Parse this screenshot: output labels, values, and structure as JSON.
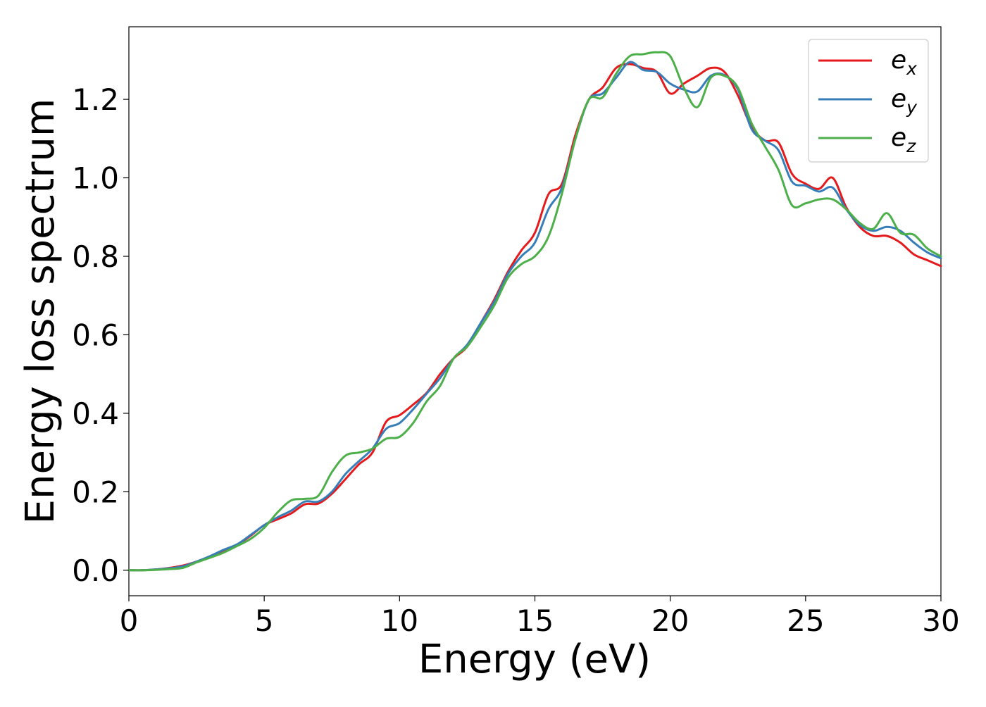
{
  "chart_data": {
    "type": "line",
    "title": "",
    "xlabel": "Energy (eV)",
    "ylabel": "Energy loss spectrum",
    "xlim": [
      0,
      30
    ],
    "ylim": [
      -0.065,
      1.385
    ],
    "xticks": [
      0,
      5,
      10,
      15,
      20,
      25,
      30
    ],
    "xtick_labels": [
      "0",
      "5",
      "10",
      "15",
      "20",
      "25",
      "30"
    ],
    "yticks": [
      0.0,
      0.2,
      0.4,
      0.6,
      0.8,
      1.0,
      1.2
    ],
    "ytick_labels": [
      "0.0",
      "0.2",
      "0.4",
      "0.6",
      "0.8",
      "1.0",
      "1.2"
    ],
    "grid": false,
    "legend_position": "top-right",
    "x": [
      0,
      0.5,
      1,
      1.5,
      2,
      2.5,
      3,
      3.5,
      4,
      4.5,
      5,
      5.5,
      6,
      6.5,
      7,
      7.5,
      8,
      8.5,
      9,
      9.5,
      10,
      10.5,
      11,
      11.5,
      12,
      12.5,
      13,
      13.5,
      14,
      14.5,
      15,
      15.5,
      16,
      16.5,
      17,
      17.5,
      18,
      18.5,
      19,
      19.5,
      20,
      20.5,
      21,
      21.5,
      22,
      22.5,
      23,
      23.5,
      24,
      24.5,
      25,
      25.5,
      26,
      26.5,
      27,
      27.5,
      28,
      28.5,
      29,
      29.5,
      30
    ],
    "series": [
      {
        "name": "e",
        "subscript": "x",
        "color": "#e41a1c",
        "values": [
          0.0,
          0.0,
          0.002,
          0.006,
          0.012,
          0.022,
          0.035,
          0.05,
          0.065,
          0.088,
          0.115,
          0.13,
          0.145,
          0.168,
          0.17,
          0.195,
          0.232,
          0.27,
          0.3,
          0.378,
          0.395,
          0.422,
          0.452,
          0.5,
          0.54,
          0.57,
          0.63,
          0.69,
          0.76,
          0.815,
          0.86,
          0.958,
          0.985,
          1.11,
          1.2,
          1.23,
          1.28,
          1.29,
          1.28,
          1.27,
          1.215,
          1.24,
          1.26,
          1.28,
          1.27,
          1.21,
          1.13,
          1.095,
          1.09,
          1.01,
          0.985,
          0.972,
          1.0,
          0.925,
          0.875,
          0.852,
          0.852,
          0.835,
          0.805,
          0.79,
          0.775
        ]
      },
      {
        "name": "e",
        "subscript": "y",
        "color": "#377eb8",
        "values": [
          0.0,
          0.0,
          0.002,
          0.005,
          0.01,
          0.022,
          0.036,
          0.052,
          0.066,
          0.09,
          0.115,
          0.135,
          0.152,
          0.175,
          0.175,
          0.2,
          0.245,
          0.278,
          0.31,
          0.36,
          0.375,
          0.41,
          0.45,
          0.49,
          0.54,
          0.575,
          0.63,
          0.685,
          0.755,
          0.8,
          0.835,
          0.92,
          0.975,
          1.1,
          1.2,
          1.215,
          1.255,
          1.295,
          1.275,
          1.27,
          1.24,
          1.225,
          1.22,
          1.26,
          1.262,
          1.225,
          1.125,
          1.095,
          1.07,
          0.99,
          0.98,
          0.965,
          0.975,
          0.92,
          0.88,
          0.865,
          0.875,
          0.865,
          0.835,
          0.81,
          0.795
        ]
      },
      {
        "name": "e",
        "subscript": "z",
        "color": "#4daf4a",
        "values": [
          0.0,
          0.0,
          0.001,
          0.003,
          0.006,
          0.02,
          0.032,
          0.045,
          0.062,
          0.08,
          0.108,
          0.148,
          0.178,
          0.182,
          0.19,
          0.25,
          0.292,
          0.3,
          0.31,
          0.335,
          0.34,
          0.375,
          0.43,
          0.47,
          0.54,
          0.57,
          0.62,
          0.675,
          0.745,
          0.78,
          0.8,
          0.85,
          0.96,
          1.1,
          1.2,
          1.205,
          1.265,
          1.31,
          1.315,
          1.32,
          1.31,
          1.23,
          1.18,
          1.255,
          1.26,
          1.23,
          1.14,
          1.08,
          1.02,
          0.93,
          0.935,
          0.945,
          0.945,
          0.92,
          0.885,
          0.87,
          0.91,
          0.86,
          0.855,
          0.82,
          0.8
        ]
      }
    ]
  }
}
